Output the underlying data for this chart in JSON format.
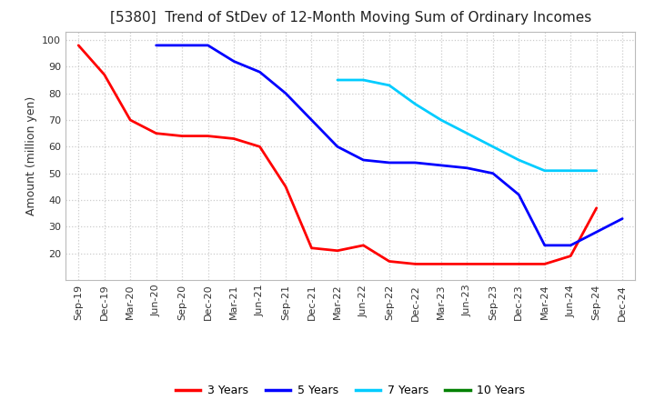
{
  "title": "[5380]  Trend of StDev of 12-Month Moving Sum of Ordinary Incomes",
  "ylabel": "Amount (million yen)",
  "bg_fig": "#ffffff",
  "bg_plot": "#ffffff",
  "grid_color": "#cccccc",
  "ylim": [
    10,
    103
  ],
  "yticks": [
    20,
    30,
    40,
    50,
    60,
    70,
    80,
    90,
    100
  ],
  "x_labels": [
    "Sep-19",
    "Dec-19",
    "Mar-20",
    "Jun-20",
    "Sep-20",
    "Dec-20",
    "Mar-21",
    "Jun-21",
    "Sep-21",
    "Dec-21",
    "Mar-22",
    "Jun-22",
    "Sep-22",
    "Dec-22",
    "Mar-23",
    "Jun-23",
    "Sep-23",
    "Dec-23",
    "Mar-24",
    "Jun-24",
    "Sep-24",
    "Dec-24"
  ],
  "series_3y": {
    "color": "#ff0000",
    "values": [
      98,
      87,
      70,
      65,
      64,
      64,
      63,
      60,
      45,
      22,
      21,
      23,
      17,
      16,
      16,
      16,
      16,
      16,
      16,
      19,
      37,
      null
    ]
  },
  "series_5y": {
    "color": "#0000ff",
    "values": [
      null,
      null,
      null,
      98,
      98,
      98,
      92,
      88,
      80,
      70,
      60,
      55,
      54,
      54,
      53,
      52,
      50,
      42,
      23,
      23,
      28,
      33
    ]
  },
  "series_7y": {
    "color": "#00ccff",
    "values": [
      null,
      null,
      null,
      null,
      null,
      null,
      null,
      null,
      null,
      null,
      85,
      85,
      83,
      76,
      70,
      65,
      60,
      55,
      51,
      51,
      51,
      null
    ]
  },
  "series_10y": {
    "color": "#008000",
    "values": [
      null,
      null,
      null,
      null,
      null,
      null,
      null,
      null,
      null,
      null,
      null,
      null,
      null,
      null,
      null,
      null,
      null,
      null,
      null,
      null,
      null,
      null
    ]
  },
  "legend_labels": [
    "3 Years",
    "5 Years",
    "7 Years",
    "10 Years"
  ],
  "legend_colors": [
    "#ff0000",
    "#0000ff",
    "#00ccff",
    "#008000"
  ],
  "linewidth": 2.0,
  "title_fontsize": 11,
  "axis_label_fontsize": 9,
  "tick_fontsize": 8,
  "legend_fontsize": 9
}
